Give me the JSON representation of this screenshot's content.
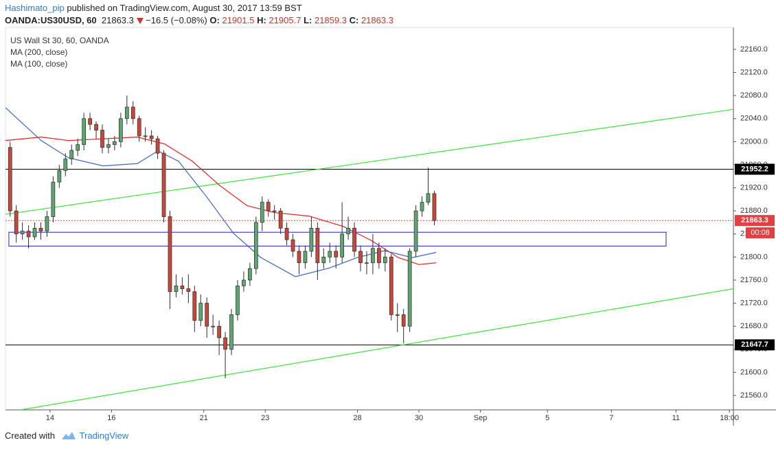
{
  "header": {
    "author": "Hashimato_pip",
    "published": "published on TradingView.com, August 30, 2017 13:59 BST",
    "symbol": "OANDA:US30USD, 60",
    "last": 21863.3,
    "change": "−16.5 (−0.08%)",
    "ohlc": [
      {
        "label": "O:",
        "value": 21901.5
      },
      {
        "label": "H:",
        "value": 21905.7
      },
      {
        "label": "L:",
        "value": 21859.3
      },
      {
        "label": "C:",
        "value": 21863.3
      }
    ]
  },
  "chart_data": {
    "type": "candlestick",
    "name": "US Wall St 30, 60, OANDA",
    "up_color": "#5ea56f",
    "down_color": "#c8473b",
    "x": [
      -1.3,
      -1.1,
      -0.9,
      -0.7,
      -0.5,
      -0.3,
      -0.1,
      0.1,
      0.3,
      0.5,
      0.7,
      0.9,
      1.1,
      1.3,
      1.5,
      1.7,
      1.9,
      2.1,
      2.3,
      2.5,
      2.7,
      2.9,
      3.1,
      3.3,
      3.5,
      3.7,
      3.9,
      4.1,
      4.3,
      4.5,
      4.7,
      4.9,
      5.1,
      5.3,
      5.5,
      5.7,
      5.9,
      6.1,
      6.3,
      6.5,
      6.7,
      6.9,
      7.1,
      7.3,
      7.5,
      7.7,
      7.9,
      8.1,
      8.3,
      8.5,
      8.7,
      8.9,
      9.1,
      9.3,
      9.5,
      9.7,
      9.9,
      10.1,
      10.3,
      10.5,
      10.7,
      10.9,
      11.1,
      11.3,
      11.5,
      11.7,
      11.9,
      12.1,
      12.3,
      12.5
    ],
    "open": [
      21990,
      21880,
      21840,
      21845,
      21835,
      21850,
      21845,
      21870,
      21930,
      21950,
      21970,
      21985,
      21995,
      22040,
      22030,
      22020,
      21990,
      21995,
      22000,
      22040,
      22060,
      22040,
      22010,
      22010,
      22005,
      21980,
      21870,
      21740,
      21750,
      21745,
      21740,
      21690,
      21720,
      21680,
      21680,
      21660,
      21640,
      21700,
      21750,
      21760,
      21780,
      21860,
      21895,
      21880,
      21880,
      21850,
      21830,
      21810,
      21790,
      21810,
      21850,
      21790,
      21800,
      21810,
      21800,
      21840,
      21850,
      21810,
      21790,
      21790,
      21815,
      21790,
      21800,
      21700,
      21700,
      21680,
      21810,
      21880,
      21895,
      21910
    ],
    "high": [
      22000,
      21890,
      21860,
      21855,
      21860,
      21860,
      21880,
      21940,
      21960,
      21980,
      21995,
      22005,
      22050,
      22050,
      22035,
      22030,
      22005,
      22010,
      22050,
      22080,
      22070,
      22045,
      22025,
      22020,
      22010,
      21985,
      21880,
      21770,
      21765,
      21770,
      21750,
      21735,
      21730,
      21700,
      21690,
      21670,
      21710,
      21760,
      21775,
      21790,
      21870,
      21905,
      21900,
      21890,
      21885,
      21860,
      21840,
      21820,
      21820,
      21870,
      21860,
      21815,
      21825,
      21820,
      21895,
      21870,
      21860,
      21820,
      21810,
      21840,
      21825,
      21815,
      21805,
      21720,
      21710,
      21815,
      21890,
      21905,
      21955,
      21915
    ],
    "low": [
      21870,
      21825,
      21830,
      21815,
      21830,
      21830,
      21835,
      21860,
      21920,
      21940,
      21960,
      21975,
      21985,
      22020,
      22005,
      21980,
      21980,
      21985,
      21990,
      22030,
      22030,
      22000,
      22000,
      21995,
      21970,
      21860,
      21710,
      21730,
      21735,
      21720,
      21670,
      21680,
      21660,
      21665,
      21630,
      21590,
      21630,
      21690,
      21740,
      21750,
      21770,
      21845,
      21870,
      21865,
      21840,
      21820,
      21800,
      21770,
      21780,
      21800,
      21760,
      21780,
      21790,
      21780,
      21790,
      21830,
      21800,
      21775,
      21770,
      21770,
      21780,
      21775,
      21690,
      21670,
      21650,
      21670,
      21800,
      21870,
      21890,
      21855
    ],
    "close": [
      21880,
      21840,
      21845,
      21835,
      21850,
      21845,
      21870,
      21930,
      21950,
      21970,
      21985,
      21995,
      22040,
      22030,
      22020,
      21990,
      21995,
      22000,
      22040,
      22060,
      22040,
      22010,
      22010,
      22005,
      21980,
      21870,
      21740,
      21750,
      21745,
      21740,
      21690,
      21720,
      21680,
      21680,
      21660,
      21640,
      21700,
      21750,
      21760,
      21780,
      21860,
      21895,
      21880,
      21880,
      21850,
      21830,
      21810,
      21790,
      21810,
      21850,
      21790,
      21800,
      21810,
      21800,
      21840,
      21850,
      21810,
      21790,
      21790,
      21815,
      21790,
      21800,
      21700,
      21700,
      21680,
      21810,
      21880,
      21895,
      21910,
      21863.3
    ],
    "overlays": [
      {
        "name": "MA (200, close)",
        "color": "#e31e1e",
        "x": [
          -1.45,
          -0.29,
          0.6,
          2.84,
          3.73,
          4.63,
          5.52,
          6.41,
          7.31,
          8.42,
          9.54,
          10.44,
          11.33,
          12.0,
          12.56
        ],
        "values": [
          22002,
          22008,
          22002,
          22008,
          21996,
          21966,
          21924,
          21889,
          21877,
          21871,
          21853,
          21829,
          21799,
          21787,
          21790
        ]
      },
      {
        "name": "MA (100, close)",
        "color": "#3a64c4",
        "x": [
          -1.45,
          -0.29,
          0.6,
          1.72,
          2.84,
          3.51,
          4.18,
          5.07,
          5.97,
          6.86,
          7.98,
          9.09,
          9.99,
          10.88,
          11.78,
          12.56
        ],
        "values": [
          22059,
          22002,
          21972,
          21958,
          21962,
          21984,
          21966,
          21906,
          21841,
          21799,
          21766,
          21781,
          21799,
          21811,
          21799,
          21808
        ]
      }
    ],
    "trendlines": [
      {
        "x": [
          -1.45,
          22.23
        ],
        "values": [
          21874,
          22056
        ],
        "color": "#3ee03e"
      },
      {
        "x": [
          -0.96,
          22.23
        ],
        "values": [
          21535,
          21745
        ],
        "color": "#3ee03e"
      }
    ],
    "zone": {
      "x": [
        -1.34,
        20.04
      ],
      "values": [
        21843,
        21819
      ],
      "color": "#1f1fd0"
    },
    "levels": [
      {
        "value": 21952.2,
        "color": "#000000"
      },
      {
        "value": 21647.7,
        "color": "#000000"
      }
    ],
    "last_price": {
      "value": 21863.3,
      "color": "#e04040",
      "countdown": "00:08"
    },
    "xlim": [
      -1.45,
      22.23
    ],
    "ylim": [
      21535,
      22198
    ],
    "xticks": [
      {
        "value": 0,
        "label": "14"
      },
      {
        "value": 2,
        "label": "16"
      },
      {
        "value": 5,
        "label": "21"
      },
      {
        "value": 7,
        "label": "23"
      },
      {
        "value": 10,
        "label": "28"
      },
      {
        "value": 12,
        "label": "30"
      },
      {
        "value": 14,
        "label": "Sep"
      },
      {
        "value": 16.18,
        "label": "5"
      },
      {
        "value": 18.26,
        "label": "7"
      },
      {
        "value": 20.36,
        "label": "11"
      },
      {
        "value": 22.1,
        "label": "18:00"
      }
    ],
    "yticks": [
      {
        "value": 21560,
        "label": "21560.0"
      },
      {
        "value": 21600,
        "label": "21600.0"
      },
      {
        "value": 21640,
        "label": "21640.0"
      },
      {
        "value": 21680,
        "label": "21680.0"
      },
      {
        "value": 21720,
        "label": "21720.0"
      },
      {
        "value": 21760,
        "label": "21760.0"
      },
      {
        "value": 21800,
        "label": "21800.0"
      },
      {
        "value": 21840,
        "label": "21840.0"
      },
      {
        "value": 21880,
        "label": "21880.0"
      },
      {
        "value": 21920,
        "label": "21920.0"
      },
      {
        "value": 21960,
        "label": "21960.0"
      },
      {
        "value": 22000,
        "label": "22000.0"
      },
      {
        "value": 22040,
        "label": "22040.0"
      },
      {
        "value": 22080,
        "label": "22080.0"
      },
      {
        "value": 22120,
        "label": "22120.0"
      },
      {
        "value": 22160,
        "label": "22160.0"
      }
    ]
  },
  "footer": {
    "created": "Created with",
    "brand": "TradingView"
  }
}
